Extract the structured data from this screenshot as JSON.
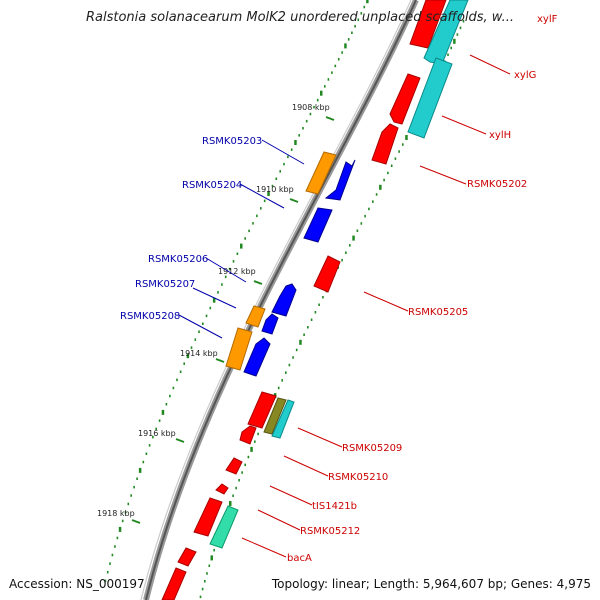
{
  "title": "Ralstonia solanacearum MolK2 unordered unplaced scaffolds, w...",
  "accession": "Accession: NS_000197",
  "topology": "Topology: linear; Length: 5,964,607 bp; Genes: 4,975",
  "colors": {
    "forward_gene": "#ff0000",
    "reverse_gene": "#0000ff",
    "cyan_feature": "#22cccc",
    "orange_feature": "#ff9900",
    "green_feature": "#33ddaa",
    "olive_feature": "#888822",
    "forward_label": "#cc0000",
    "reverse_label": "#0000aa",
    "backbone": "#777777",
    "gc_dots": "#228822"
  },
  "scale_ticks": [
    {
      "label": "1908 kbp"
    },
    {
      "label": "1910 kbp"
    },
    {
      "label": "1912 kbp"
    },
    {
      "label": "1914 kbp"
    },
    {
      "label": "1916 kbp"
    },
    {
      "label": "1918 kbp"
    }
  ],
  "reverse_labels": [
    "RSMK05203",
    "RSMK05204",
    "RSMK05206",
    "RSMK05207",
    "RSMK05208"
  ],
  "forward_labels": [
    "xylF",
    "xylG",
    "xylH",
    "RSMK05202",
    "RSMK05205",
    "RSMK05209",
    "RSMK05210",
    "tIS1421b",
    "RSMK05212",
    "bacA"
  ]
}
